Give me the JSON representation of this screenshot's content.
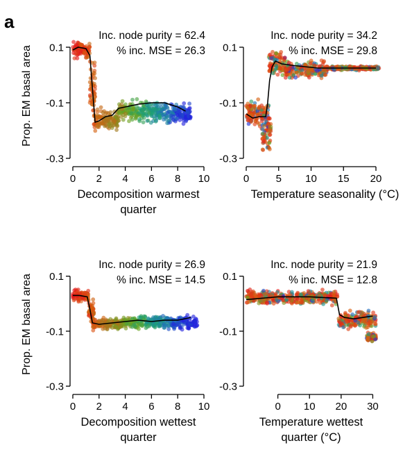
{
  "panel_letter": "a",
  "colors": {
    "gradient": [
      "#e31a1c",
      "#d95f0e",
      "#a6761d",
      "#66a61e",
      "#1b9e77",
      "#1f78b4",
      "#2222dd"
    ],
    "smooth_line": "#000000",
    "axis": "#000000"
  },
  "chart_data": [
    {
      "type": "scatter",
      "xlabel": "Decomposition warmest quarter",
      "xlabel_lines": [
        "Decomposition warmest",
        "quarter"
      ],
      "ylabel": "Prop. EM basal area",
      "annotation": [
        "Inc. node purity = 62.4",
        "% inc. MSE = 26.3"
      ],
      "xlim": [
        0,
        10
      ],
      "xticks": [
        0,
        2,
        4,
        6,
        8,
        10
      ],
      "ylim": [
        -0.32,
        0.17
      ],
      "yticks": [
        0.1,
        -0.1,
        -0.3
      ],
      "ytick_labels": [
        "0.1",
        "-0.1",
        "-0.3"
      ],
      "grid": false,
      "color_encoding": "x (red = low, blue = high)",
      "smooth_line": [
        [
          0,
          0.09
        ],
        [
          0.4,
          0.1
        ],
        [
          1.0,
          0.095
        ],
        [
          1.3,
          0.07
        ],
        [
          1.5,
          -0.05
        ],
        [
          1.7,
          -0.17
        ],
        [
          2.0,
          -0.165
        ],
        [
          2.5,
          -0.15
        ],
        [
          3.0,
          -0.145
        ],
        [
          3.5,
          -0.12
        ],
        [
          4.0,
          -0.115
        ],
        [
          5.0,
          -0.105
        ],
        [
          6.0,
          -0.1
        ],
        [
          7.0,
          -0.1
        ],
        [
          8.0,
          -0.115
        ],
        [
          8.6,
          -0.13
        ]
      ],
      "cloud": [
        {
          "x": [
            0,
            1.3
          ],
          "y": [
            0.05,
            0.13
          ]
        },
        {
          "x": [
            1.3,
            1.7
          ],
          "y": [
            -0.2,
            0.1
          ]
        },
        {
          "x": [
            1.6,
            3.5
          ],
          "y": [
            -0.21,
            -0.11
          ]
        },
        {
          "x": [
            3.5,
            6.5
          ],
          "y": [
            -0.18,
            -0.08
          ]
        },
        {
          "x": [
            6.5,
            9.0
          ],
          "y": [
            -0.19,
            -0.09
          ]
        }
      ]
    },
    {
      "type": "scatter",
      "xlabel": "Temperature seasonality (°C)",
      "xlabel_lines": [
        "Temperature seasonality (°C)"
      ],
      "ylabel": "",
      "annotation": [
        "Inc. node purity = 34.2",
        "% inc. MSE = 29.8"
      ],
      "xlim": [
        0,
        20
      ],
      "xticks": [
        0,
        5,
        10,
        15,
        20
      ],
      "ylim": [
        -0.32,
        0.17
      ],
      "yticks": [
        0.1,
        -0.1,
        -0.3
      ],
      "ytick_labels": [
        "0.1",
        "-0.1",
        "-0.3"
      ],
      "grid": false,
      "color_encoding": "mixed",
      "smooth_line": [
        [
          0,
          -0.14
        ],
        [
          1.0,
          -0.155
        ],
        [
          2.0,
          -0.15
        ],
        [
          3.0,
          -0.15
        ],
        [
          3.3,
          -0.1
        ],
        [
          3.6,
          -0.02
        ],
        [
          4.0,
          0.03
        ],
        [
          4.5,
          0.05
        ],
        [
          5.5,
          0.04
        ],
        [
          7.0,
          0.035
        ],
        [
          9.0,
          0.03
        ],
        [
          11.0,
          0.025
        ],
        [
          13.0,
          0.025
        ],
        [
          16.0,
          0.025
        ],
        [
          20.0,
          0.025
        ]
      ],
      "cloud": [
        {
          "x": [
            0,
            3.5
          ],
          "y": [
            -0.2,
            -0.08
          ]
        },
        {
          "x": [
            2.5,
            3.8
          ],
          "y": [
            -0.3,
            -0.12
          ]
        },
        {
          "x": [
            3.5,
            6.0
          ],
          "y": [
            -0.02,
            0.1
          ]
        },
        {
          "x": [
            6.0,
            12.5
          ],
          "y": [
            -0.02,
            0.06
          ]
        },
        {
          "x": [
            12.5,
            20.5
          ],
          "y": [
            0.015,
            0.035
          ]
        }
      ]
    },
    {
      "type": "scatter",
      "xlabel": "Decomposition wettest quarter",
      "xlabel_lines": [
        "Decomposition wettest",
        "quarter"
      ],
      "ylabel": "Prop. EM basal area",
      "annotation": [
        "Inc. node purity = 26.9",
        "% inc. MSE = 14.5"
      ],
      "xlim": [
        0,
        10
      ],
      "xticks": [
        0,
        2,
        4,
        6,
        8,
        10
      ],
      "ylim": [
        -0.32,
        0.17
      ],
      "yticks": [
        0.1,
        -0.1,
        -0.3
      ],
      "ytick_labels": [
        "0.1",
        "-0.1",
        "-0.3"
      ],
      "grid": false,
      "color_encoding": "x (red = low, blue = high)",
      "smooth_line": [
        [
          0,
          0.03
        ],
        [
          0.5,
          0.03
        ],
        [
          1.1,
          0.025
        ],
        [
          1.3,
          -0.02
        ],
        [
          1.5,
          -0.07
        ],
        [
          2.0,
          -0.075
        ],
        [
          3.0,
          -0.07
        ],
        [
          4.0,
          -0.065
        ],
        [
          5.0,
          -0.06
        ],
        [
          6.0,
          -0.065
        ],
        [
          7.0,
          -0.06
        ],
        [
          8.0,
          -0.06
        ],
        [
          9.0,
          -0.05
        ]
      ],
      "cloud": [
        {
          "x": [
            0,
            1.2
          ],
          "y": [
            0.0,
            0.055
          ]
        },
        {
          "x": [
            1.2,
            1.6
          ],
          "y": [
            -0.08,
            0.02
          ]
        },
        {
          "x": [
            1.5,
            4.0
          ],
          "y": [
            -0.1,
            -0.045
          ]
        },
        {
          "x": [
            4.0,
            9.5
          ],
          "y": [
            -0.1,
            -0.035
          ]
        }
      ]
    },
    {
      "type": "scatter",
      "xlabel": "Temperature wettest quarter (°C)",
      "xlabel_lines": [
        "Temperature wettest",
        "quarter (°C)"
      ],
      "ylabel": "",
      "annotation": [
        "Inc. node purity = 21.9",
        "% inc. MSE = 12.8"
      ],
      "xlim": [
        -10,
        31
      ],
      "xticks": [
        0,
        10,
        20,
        30
      ],
      "ylim": [
        -0.32,
        0.17
      ],
      "yticks": [
        0.1,
        -0.1,
        -0.3
      ],
      "ytick_labels": [
        "0.1",
        "-0.1",
        "-0.3"
      ],
      "grid": false,
      "color_encoding": "mixed",
      "smooth_line": [
        [
          -10,
          0.015
        ],
        [
          -5,
          0.02
        ],
        [
          0,
          0.025
        ],
        [
          5,
          0.025
        ],
        [
          10,
          0.025
        ],
        [
          15,
          0.022
        ],
        [
          18.5,
          0.02
        ],
        [
          19.5,
          -0.04
        ],
        [
          21,
          -0.05
        ],
        [
          24,
          -0.055
        ],
        [
          27,
          -0.05
        ],
        [
          30,
          -0.045
        ]
      ],
      "cloud": [
        {
          "x": [
            -10,
            19
          ],
          "y": [
            -0.01,
            0.055
          ]
        },
        {
          "x": [
            19,
            31
          ],
          "y": [
            -0.1,
            -0.02
          ]
        },
        {
          "x": [
            28,
            31
          ],
          "y": [
            -0.14,
            -0.1
          ]
        }
      ]
    }
  ]
}
